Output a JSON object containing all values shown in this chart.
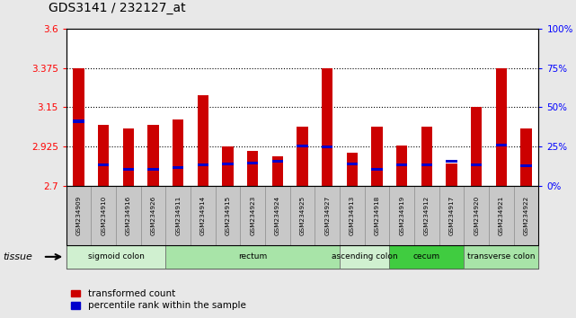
{
  "title": "GDS3141 / 232127_at",
  "samples": [
    "GSM234909",
    "GSM234910",
    "GSM234916",
    "GSM234926",
    "GSM234911",
    "GSM234914",
    "GSM234915",
    "GSM234923",
    "GSM234924",
    "GSM234925",
    "GSM234927",
    "GSM234913",
    "GSM234918",
    "GSM234919",
    "GSM234912",
    "GSM234917",
    "GSM234920",
    "GSM234921",
    "GSM234922"
  ],
  "red_values": [
    3.375,
    3.05,
    3.03,
    3.05,
    3.08,
    3.22,
    2.925,
    2.9,
    2.87,
    3.04,
    3.375,
    2.89,
    3.04,
    2.93,
    3.04,
    2.83,
    3.15,
    3.375,
    3.03
  ],
  "blue_values": [
    3.07,
    2.82,
    2.795,
    2.795,
    2.805,
    2.82,
    2.825,
    2.83,
    2.84,
    2.93,
    2.925,
    2.825,
    2.795,
    2.82,
    2.82,
    2.84,
    2.82,
    2.935,
    2.815
  ],
  "ymin": 2.7,
  "ymax": 3.6,
  "y_ticks_left": [
    2.7,
    2.925,
    3.15,
    3.375,
    3.6
  ],
  "y_ticks_right_pct": [
    0,
    25,
    50,
    75,
    100
  ],
  "tissue_groups": [
    {
      "label": "sigmoid colon",
      "start": 0,
      "end": 4,
      "color": "#d0f0d0"
    },
    {
      "label": "rectum",
      "start": 4,
      "end": 11,
      "color": "#a8e4a8"
    },
    {
      "label": "ascending colon",
      "start": 11,
      "end": 13,
      "color": "#d0f0d0"
    },
    {
      "label": "cecum",
      "start": 13,
      "end": 16,
      "color": "#40cc40"
    },
    {
      "label": "transverse colon",
      "start": 16,
      "end": 19,
      "color": "#a8e4a8"
    }
  ],
  "bar_color": "#cc0000",
  "blue_color": "#0000cc",
  "fig_bg": "#e8e8e8",
  "plot_bg": "#ffffff",
  "sample_box_bg": "#c8c8c8",
  "red_label": "transformed count",
  "blue_label": "percentile rank within the sample"
}
